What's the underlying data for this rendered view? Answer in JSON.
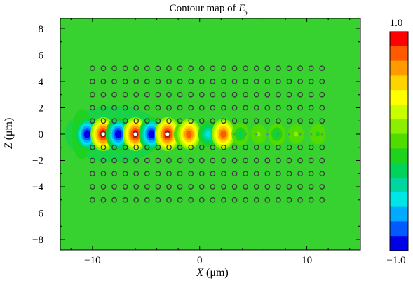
{
  "chart_data": {
    "type": "heatmap",
    "title_prefix": "Contour map of ",
    "title_var": "E",
    "title_sub": "y",
    "xlabel_var": "X",
    "xlabel_unit": " (μm)",
    "ylabel_var": "Z",
    "ylabel_unit": " (μm)",
    "xlim": [
      -13,
      15
    ],
    "ylim": [
      -8.8,
      8.8
    ],
    "xticks": [
      -10,
      0,
      10
    ],
    "xtick_labels": [
      "−10",
      "0",
      "10"
    ],
    "yticks": [
      8,
      6,
      4,
      2,
      0,
      -2,
      -4,
      -6,
      -8
    ],
    "ytick_labels": [
      "8",
      "6",
      "4",
      "2",
      "0",
      "−2",
      "−4",
      "−6",
      "−8"
    ],
    "colorbar": {
      "max_label": "1.0",
      "min_label": "−1.0",
      "range": [
        -1.0,
        1.0
      ],
      "levels": [
        "#ff0000",
        "#ff5a00",
        "#ff9b00",
        "#ffd300",
        "#ffff00",
        "#c8ff00",
        "#8cee00",
        "#50dc00",
        "#1ed21e",
        "#00d25a",
        "#00d7a0",
        "#00e6e6",
        "#00aaff",
        "#005aff",
        "#0000e6"
      ]
    },
    "background_value": 0.0,
    "hole_lattice": {
      "x_values": [
        -10.0,
        -8.98,
        -7.96,
        -6.94,
        -5.92,
        -4.9,
        -3.88,
        -2.86,
        -1.84,
        -0.82,
        0.2,
        1.22,
        2.24,
        3.26,
        4.28,
        5.3,
        6.32,
        7.34,
        8.36,
        9.38,
        10.4,
        11.42
      ],
      "z_values": [
        5,
        4,
        3,
        2,
        1,
        -1,
        -2,
        -3,
        -4,
        -5
      ],
      "waveguide_row_holes": [
        -9.0,
        -6.0,
        -3.0
      ]
    },
    "field_features": [
      {
        "x": -10.5,
        "z": 0,
        "value": -1.0
      },
      {
        "x": -9.0,
        "z": 0,
        "value": 1.0
      },
      {
        "x": -7.6,
        "z": 0,
        "value": -1.0
      },
      {
        "x": -6.0,
        "z": 0,
        "value": 1.0
      },
      {
        "x": -4.5,
        "z": 0,
        "value": -1.0
      },
      {
        "x": -3.0,
        "z": 0,
        "value": 1.0
      },
      {
        "x": -1.6,
        "z": 0,
        "value": -0.3
      },
      {
        "x": -1.0,
        "z": 0,
        "value": 0.8
      },
      {
        "x": 0.8,
        "z": 0,
        "value": -0.5
      },
      {
        "x": 2.2,
        "z": 0,
        "value": 0.8
      },
      {
        "x": 3.8,
        "z": 0,
        "value": -0.3
      },
      {
        "x": 5.5,
        "z": 0,
        "value": 0.15
      },
      {
        "x": 7.2,
        "z": 0,
        "value": -0.3
      },
      {
        "x": 9.0,
        "z": 0,
        "value": 0.15
      },
      {
        "x": 11.0,
        "z": 0,
        "value": -0.2
      }
    ]
  }
}
